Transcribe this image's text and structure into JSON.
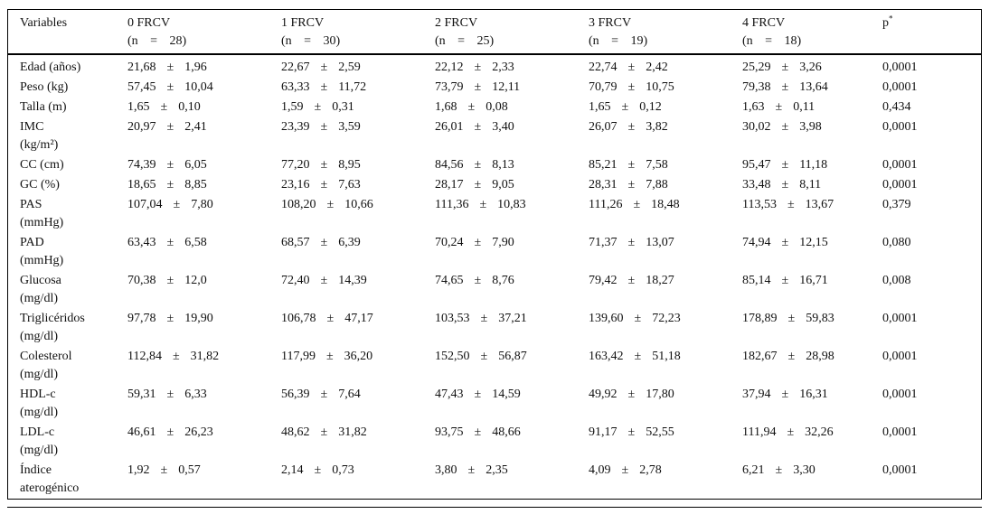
{
  "pm_symbol": "±",
  "table": {
    "columns": [
      {
        "key": "variables",
        "label": "Variables"
      },
      {
        "key": "frcv0",
        "label": "0 FRCV",
        "n": "(n = 28)"
      },
      {
        "key": "frcv1",
        "label": "1 FRCV",
        "n": "(n = 30)"
      },
      {
        "key": "frcv2",
        "label": "2 FRCV",
        "n": "(n = 25)"
      },
      {
        "key": "frcv3",
        "label": "3 FRCV",
        "n": "(n = 19)"
      },
      {
        "key": "frcv4",
        "label": "4 FRCV",
        "n": "(n = 18)"
      },
      {
        "key": "p",
        "label": "p",
        "sup": "*"
      }
    ],
    "rows": [
      {
        "name": "Edad (años)",
        "cells": [
          {
            "mean": "21,68",
            "sd": "1,96"
          },
          {
            "mean": "22,67",
            "sd": "2,59"
          },
          {
            "mean": "22,12",
            "sd": "2,33"
          },
          {
            "mean": "22,74",
            "sd": "2,42"
          },
          {
            "mean": "25,29",
            "sd": "3,26"
          }
        ],
        "p": "0,0001"
      },
      {
        "name": "Peso (kg)",
        "cells": [
          {
            "mean": "57,45",
            "sd": "10,04"
          },
          {
            "mean": "63,33",
            "sd": "11,72"
          },
          {
            "mean": "73,79",
            "sd": "12,11"
          },
          {
            "mean": "70,79",
            "sd": "10,75"
          },
          {
            "mean": "79,38",
            "sd": "13,64"
          }
        ],
        "p": "0,0001"
      },
      {
        "name": "Talla (m)",
        "cells": [
          {
            "mean": "1,65",
            "sd": "0,10"
          },
          {
            "mean": "1,59",
            "sd": "0,31"
          },
          {
            "mean": "1,68",
            "sd": "0,08"
          },
          {
            "mean": "1,65",
            "sd": "0,12"
          },
          {
            "mean": "1,63",
            "sd": "0,11"
          }
        ],
        "p": "0,434"
      },
      {
        "name": "IMC",
        "name2": "(kg/m²)",
        "cells": [
          {
            "mean": "20,97",
            "sd": "2,41"
          },
          {
            "mean": "23,39",
            "sd": "3,59"
          },
          {
            "mean": "26,01",
            "sd": "3,40"
          },
          {
            "mean": "26,07",
            "sd": "3,82"
          },
          {
            "mean": "30,02",
            "sd": "3,98"
          }
        ],
        "p": "0,0001"
      },
      {
        "name": "CC (cm)",
        "cells": [
          {
            "mean": "74,39",
            "sd": "6,05"
          },
          {
            "mean": "77,20",
            "sd": "8,95"
          },
          {
            "mean": "84,56",
            "sd": "8,13"
          },
          {
            "mean": "85,21",
            "sd": "7,58"
          },
          {
            "mean": "95,47",
            "sd": "11,18"
          }
        ],
        "p": "0,0001"
      },
      {
        "name": "GC (%)",
        "cells": [
          {
            "mean": "18,65",
            "sd": "8,85"
          },
          {
            "mean": "23,16",
            "sd": "7,63"
          },
          {
            "mean": "28,17",
            "sd": "9,05"
          },
          {
            "mean": "28,31",
            "sd": "7,88"
          },
          {
            "mean": "33,48",
            "sd": "8,11"
          }
        ],
        "p": "0,0001"
      },
      {
        "name": "PAS",
        "name2": "(mmHg)",
        "cells": [
          {
            "mean": "107,04",
            "sd": "7,80"
          },
          {
            "mean": "108,20",
            "sd": "10,66"
          },
          {
            "mean": "111,36",
            "sd": "10,83"
          },
          {
            "mean": "111,26",
            "sd": "18,48"
          },
          {
            "mean": "113,53",
            "sd": "13,67"
          }
        ],
        "p": "0,379"
      },
      {
        "name": "PAD",
        "name2": "(mmHg)",
        "cells": [
          {
            "mean": "63,43",
            "sd": "6,58"
          },
          {
            "mean": "68,57",
            "sd": "6,39"
          },
          {
            "mean": "70,24",
            "sd": "7,90"
          },
          {
            "mean": "71,37",
            "sd": "13,07"
          },
          {
            "mean": "74,94",
            "sd": "12,15"
          }
        ],
        "p": "0,080"
      },
      {
        "name": "Glucosa",
        "name2": "(mg/dl)",
        "cells": [
          {
            "mean": "70,38",
            "sd": "12,0"
          },
          {
            "mean": "72,40",
            "sd": "14,39"
          },
          {
            "mean": "74,65",
            "sd": "8,76"
          },
          {
            "mean": "79,42",
            "sd": "18,27"
          },
          {
            "mean": "85,14",
            "sd": "16,71"
          }
        ],
        "p": "0,008"
      },
      {
        "name": "Triglicéridos",
        "name2": "(mg/dl)",
        "cells": [
          {
            "mean": "97,78",
            "sd": "19,90"
          },
          {
            "mean": "106,78",
            "sd": "47,17"
          },
          {
            "mean": "103,53",
            "sd": "37,21"
          },
          {
            "mean": "139,60",
            "sd": "72,23"
          },
          {
            "mean": "178,89",
            "sd": "59,83"
          }
        ],
        "p": "0,0001"
      },
      {
        "name": "Colesterol",
        "name2": "(mg/dl)",
        "cells": [
          {
            "mean": "112,84",
            "sd": "31,82"
          },
          {
            "mean": "117,99",
            "sd": "36,20"
          },
          {
            "mean": "152,50",
            "sd": "56,87"
          },
          {
            "mean": "163,42",
            "sd": "51,18"
          },
          {
            "mean": "182,67",
            "sd": "28,98"
          }
        ],
        "p": "0,0001"
      },
      {
        "name": "HDL-c",
        "name2": "(mg/dl)",
        "cells": [
          {
            "mean": "59,31",
            "sd": "6,33"
          },
          {
            "mean": "56,39",
            "sd": "7,64"
          },
          {
            "mean": "47,43",
            "sd": "14,59"
          },
          {
            "mean": "49,92",
            "sd": "17,80"
          },
          {
            "mean": "37,94",
            "sd": "16,31"
          }
        ],
        "p": "0,0001"
      },
      {
        "name": "LDL-c",
        "name2": "(mg/dl)",
        "cells": [
          {
            "mean": "46,61",
            "sd": "26,23"
          },
          {
            "mean": "48,62",
            "sd": "31,82"
          },
          {
            "mean": "93,75",
            "sd": "48,66"
          },
          {
            "mean": "91,17",
            "sd": "52,55"
          },
          {
            "mean": "111,94",
            "sd": "32,26"
          }
        ],
        "p": "0,0001"
      },
      {
        "name": "Índice",
        "name2": "aterogénico",
        "cells": [
          {
            "mean": "1,92",
            "sd": "0,57"
          },
          {
            "mean": "2,14",
            "sd": "0,73"
          },
          {
            "mean": "3,80",
            "sd": "2,35"
          },
          {
            "mean": "4,09",
            "sd": "2,78"
          },
          {
            "mean": "6,21",
            "sd": "3,30"
          }
        ],
        "p": "0,0001"
      }
    ]
  }
}
